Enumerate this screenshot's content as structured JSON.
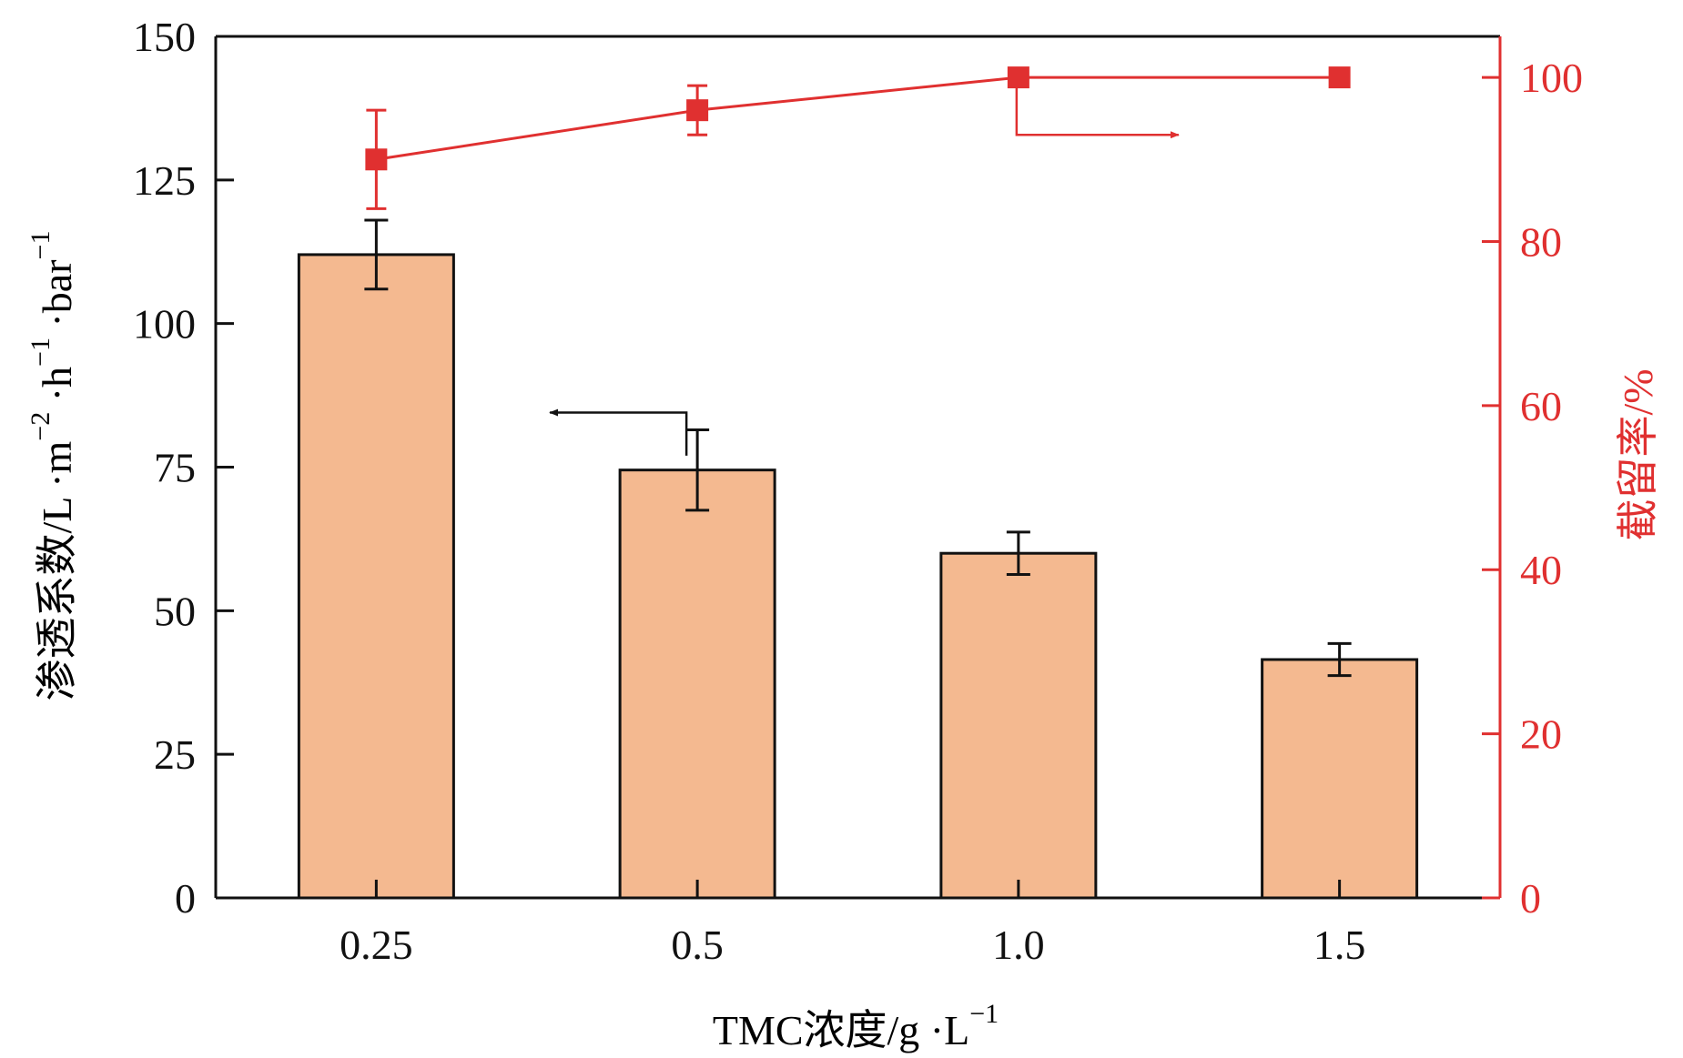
{
  "colors": {
    "bar_fill": "#F4B990",
    "bar_stroke": "#111111",
    "axis": "#111111",
    "right_series": "#E03030"
  },
  "chart_data": {
    "type": "bar",
    "categories": [
      "0.25",
      "0.5",
      "1.0",
      "1.5"
    ],
    "series": [
      {
        "axis": "left",
        "kind": "bar",
        "values": [
          112,
          74.5,
          60,
          41.5
        ],
        "errors": [
          6,
          7,
          3.7,
          2.8
        ]
      },
      {
        "axis": "right",
        "kind": "line",
        "marker": "square",
        "values": [
          90,
          96,
          100,
          100
        ],
        "errors": [
          6,
          3,
          0,
          0
        ]
      }
    ],
    "xlabel": {
      "main": "TMC浓度/g ·L",
      "sup": "−1"
    },
    "ylabel_left": {
      "parts": [
        {
          "text": "渗透系数/L ·m",
          "sup": "−2"
        },
        {
          "text": " ·h",
          "sup": "−1"
        },
        {
          "text": " ·bar",
          "sup": "−1"
        }
      ]
    },
    "ylabel_right": "截留率/%",
    "ylim_left": [
      0,
      150
    ],
    "yticks_left": [
      "0",
      "25",
      "50",
      "75",
      "100",
      "125",
      "150"
    ],
    "ylim_right": [
      0,
      105
    ],
    "yticks_right": [
      "0",
      "20",
      "40",
      "60",
      "80",
      "100"
    ],
    "grid": false,
    "annotations": [
      {
        "type": "arrow",
        "points_to": "left-axis",
        "near_category": "0.5"
      },
      {
        "type": "arrow",
        "points_to": "right-axis",
        "near_category": "1.0"
      }
    ]
  }
}
